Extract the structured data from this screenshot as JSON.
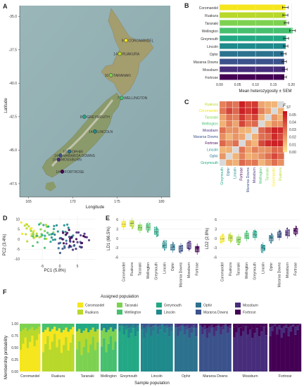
{
  "panels": {
    "A": "A",
    "B": "B",
    "C": "C",
    "D": "D",
    "E": "E",
    "F": "F"
  },
  "colors": {
    "Coromandel": "#f5e61e",
    "Ruakura": "#b8d82b",
    "Taranaki": "#7cd250",
    "Wellington": "#46c06f",
    "Greymouth": "#22a884",
    "Lincoln": "#1f8a8c",
    "Ophir": "#2c728e",
    "Mararoa Downs": "#3b528b",
    "Mossburn": "#472d7b",
    "Fortrose": "#440154"
  },
  "map": {
    "ylabel": "Latitude",
    "xlabel": "Longitude",
    "yticks": [
      "-35.0",
      "-37.5",
      "-40.0",
      "-42.5",
      "-45.0",
      "-47.5"
    ],
    "xticks": [
      "165",
      "170",
      "175",
      "180"
    ],
    "sites": [
      {
        "n": "9",
        "name": "COROMANDEL"
      },
      {
        "n": "14",
        "name": "RUAKURA"
      },
      {
        "n": "10",
        "name": "TARANAKI"
      },
      {
        "n": "7",
        "name": "WELLINGTON"
      },
      {
        "n": "9",
        "name": "GREYMOUTH"
      },
      {
        "n": "14",
        "name": "LINCOLN"
      },
      {
        "n": "10",
        "name": "OPHIR"
      },
      {
        "n": "14",
        "name": "MARAROA DOWNS"
      },
      {
        "n": "15",
        "name": "MOSSBURN"
      },
      {
        "n": "14",
        "name": "FORTROSE"
      }
    ]
  },
  "chart_data": [
    {
      "id": "B",
      "type": "bar",
      "xlabel": "Mean heterozygosity ± SEM",
      "categories": [
        "Coromandel",
        "Ruakura",
        "Taranaki",
        "Wellington",
        "Greymouth",
        "Lincoln",
        "Ophir",
        "Mararoa Downs",
        "Mossburn",
        "Fortrose"
      ],
      "values": [
        0.183,
        0.183,
        0.186,
        0.203,
        0.185,
        0.184,
        0.178,
        0.18,
        0.182,
        0.18
      ],
      "errors": [
        0.008,
        0.007,
        0.006,
        0.008,
        0.007,
        0.006,
        0.007,
        0.006,
        0.006,
        0.006
      ],
      "xticks": [
        "0.00",
        "0.05",
        "0.10",
        "0.15",
        "0.20"
      ],
      "xlim": [
        0,
        0.225
      ]
    },
    {
      "id": "C",
      "type": "heatmap",
      "legend_title": "F",
      "legend_sub": "ST",
      "rows": [
        "Ruakura",
        "Coromandel",
        "Taranaki",
        "Wellington",
        "Mossburn",
        "Mararoa Downs",
        "Fortrose",
        "Lincoln",
        "Ophir",
        "Greymouth"
      ],
      "cols": [
        "Greymouth",
        "Ophir",
        "Lincoln",
        "Fortrose",
        "Mararoa Downs",
        "Mossburn",
        "Wellington",
        "Taranaki",
        "Coromandel",
        "Ruakura"
      ],
      "legend_ticks": [
        "0.05",
        "0.04",
        "0.03",
        "0.02",
        "0.01",
        "0.00"
      ]
    },
    {
      "id": "D",
      "type": "scatter",
      "xlabel": "PC1 (5.8%)",
      "ylabel": "PC2 (3.4%)",
      "xticks": [
        "-5",
        "0",
        "5"
      ],
      "yticks": [
        "10",
        "5",
        "0",
        "-5",
        "-10"
      ]
    },
    {
      "id": "E1",
      "type": "box",
      "ylabel": "LD1 (66.5%)",
      "yticks": [
        "6",
        "3",
        "0",
        "-3",
        "-6"
      ],
      "categories": [
        "Coromandel",
        "Ruakura",
        "Taranaki",
        "Wellington",
        "Greymouth",
        "Lincoln",
        "Ophir",
        "Mararoa Downs",
        "Mossburn",
        "Fortrose"
      ],
      "medians": [
        4.6,
        4.8,
        3.5,
        3.6,
        2.2,
        -2.2,
        -2.8,
        -3.2,
        -2.3,
        -3.4
      ]
    },
    {
      "id": "E2",
      "type": "box",
      "ylabel": "LD2 (2.8%)",
      "yticks": [
        "6",
        "3",
        "0",
        "-3",
        "-6"
      ],
      "categories": [
        "Coromandel",
        "Ruakura",
        "Taranaki",
        "Wellington",
        "Greymouth",
        "Lincoln",
        "Ophir",
        "Mararoa Downs",
        "Mossburn",
        "Fortrose"
      ],
      "medians": [
        -0.1,
        0.2,
        -0.4,
        0.9,
        1.2,
        -3.0,
        0.1,
        1.2,
        1.8,
        2.4
      ]
    },
    {
      "id": "F",
      "type": "bar",
      "title": "Assigned population",
      "xlabel": "Sample population",
      "ylabel": "Membership probability",
      "yticks": [
        "1.00",
        "0.75",
        "0.50",
        "0.25",
        "0.00"
      ],
      "categories": [
        "Coromandel",
        "Ruakura",
        "Taranaki",
        "Wellington",
        "Greymouth",
        "Lincoln",
        "Ophir",
        "Mararoa Downs",
        "Mossburn",
        "Fortrose"
      ],
      "legend": [
        "Coromandel",
        "Taranaki",
        "Greymouth",
        "Ophir",
        "Mossburn",
        "Ruakura",
        "Wellington",
        "Lincoln",
        "Mararoa Downs",
        "Fortrose"
      ],
      "n": [
        9,
        14,
        10,
        7,
        9,
        14,
        10,
        14,
        15,
        14
      ]
    }
  ]
}
